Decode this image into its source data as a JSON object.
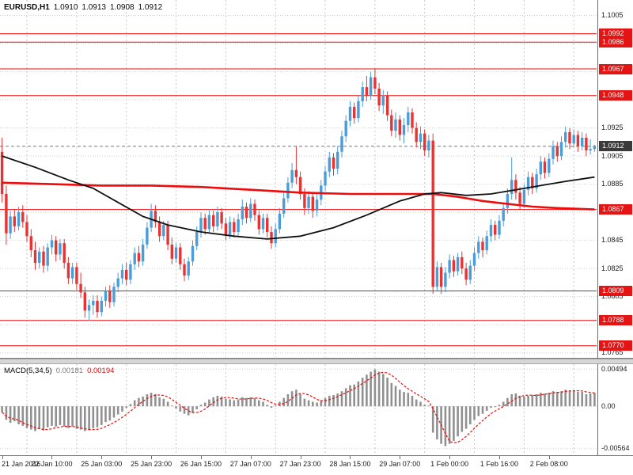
{
  "header": {
    "symbol_period": "EURUSD,H1",
    "open": "1.0910",
    "high": "1.0913",
    "low": "1.0908",
    "close": "1.0912"
  },
  "macd_header": {
    "name": "MACD(5,34,5)",
    "value_main": "0.00181",
    "value_signal": "0.00194"
  },
  "colors": {
    "up_candle": "#4b9cd8",
    "down_candle": "#e53434",
    "ma_fast_black": "#101010",
    "ma_slow_red": "#ee0b0b",
    "level_line": "#ee0b0b",
    "grid": "#cfcfcf",
    "separator": "#c8c8c8",
    "badge_red": "#e31414",
    "badge_dark": "#3a3a3a",
    "bid_line": "#777777",
    "macd_hist": "#909090",
    "macd_signal": "#ee0b0b"
  },
  "chart_data": {
    "type": "candlestick",
    "title": "EURUSD,H1",
    "timeframe": "H1",
    "price_axis": {
      "min": 1.0762,
      "max": 1.1016,
      "decimals": 4,
      "grid": [
        1.0765,
        1.0785,
        1.0805,
        1.0825,
        1.0845,
        1.0865,
        1.0885,
        1.0905,
        1.0925,
        1.0945,
        1.0965,
        1.0985,
        1.1005
      ],
      "visible_ticks": [
        1.1005,
        1.0925,
        1.0905,
        1.0885,
        1.0845,
        1.0825,
        1.0805,
        1.0765
      ]
    },
    "levels": [
      1.0992,
      1.0986,
      1.0967,
      1.0948,
      1.0867,
      1.0809,
      1.0788,
      1.077
    ],
    "bid_price": 1.0912,
    "day_separator_indices": [
      6,
      18,
      30,
      42,
      54,
      66,
      78,
      90,
      102,
      114,
      126,
      138
    ],
    "x_labels": [
      {
        "i": 0,
        "t": "21 Jan 2016"
      },
      {
        "i": 12,
        "t": "22 Jan 10:00"
      },
      {
        "i": 24,
        "t": "25 Jan 03:00"
      },
      {
        "i": 36,
        "t": "25 Jan 23:00"
      },
      {
        "i": 48,
        "t": "26 Jan 15:00"
      },
      {
        "i": 60,
        "t": "27 Jan 07:00"
      },
      {
        "i": 72,
        "t": "27 Jan 23:00"
      },
      {
        "i": 84,
        "t": "28 Jan 15:00"
      },
      {
        "i": 96,
        "t": "29 Jan 07:00"
      },
      {
        "i": 108,
        "t": "1 Feb 00:00"
      },
      {
        "i": 120,
        "t": "1 Feb 16:00"
      },
      {
        "i": 132,
        "t": "2 Feb 08:00"
      }
    ],
    "candles": [
      [
        1.0908,
        1.0918,
        1.0872,
        1.0878
      ],
      [
        1.0878,
        1.0884,
        1.0842,
        1.085
      ],
      [
        1.085,
        1.0866,
        1.0846,
        1.0862
      ],
      [
        1.0862,
        1.0867,
        1.0851,
        1.0855
      ],
      [
        1.0855,
        1.0869,
        1.0852,
        1.0865
      ],
      [
        1.0865,
        1.087,
        1.0854,
        1.0858
      ],
      [
        1.0858,
        1.0863,
        1.0844,
        1.0848
      ],
      [
        1.0848,
        1.0853,
        1.0833,
        1.0838
      ],
      [
        1.0838,
        1.0844,
        1.0824,
        1.0829
      ],
      [
        1.0829,
        1.084,
        1.0825,
        1.0837
      ],
      [
        1.0837,
        1.0841,
        1.0822,
        1.0827
      ],
      [
        1.0827,
        1.0843,
        1.0823,
        1.084
      ],
      [
        1.084,
        1.0849,
        1.0835,
        1.0845
      ],
      [
        1.0845,
        1.0848,
        1.083,
        1.0835
      ],
      [
        1.0835,
        1.0846,
        1.0831,
        1.0843
      ],
      [
        1.0843,
        1.0846,
        1.0825,
        1.0829
      ],
      [
        1.0829,
        1.0833,
        1.0814,
        1.0818
      ],
      [
        1.0818,
        1.0829,
        1.0814,
        1.0826
      ],
      [
        1.0826,
        1.0829,
        1.081,
        1.0814
      ],
      [
        1.0814,
        1.0822,
        1.0804,
        1.0808
      ],
      [
        1.0808,
        1.0812,
        1.079,
        1.0795
      ],
      [
        1.0795,
        1.0803,
        1.0788,
        1.0799
      ],
      [
        1.0799,
        1.0806,
        1.0792,
        1.0802
      ],
      [
        1.0802,
        1.0806,
        1.079,
        1.0794
      ],
      [
        1.0794,
        1.0805,
        1.0791,
        1.0802
      ],
      [
        1.0802,
        1.0812,
        1.0798,
        1.0809
      ],
      [
        1.0809,
        1.0813,
        1.0797,
        1.0801
      ],
      [
        1.0801,
        1.0815,
        1.0798,
        1.0812
      ],
      [
        1.0812,
        1.0822,
        1.0808,
        1.0818
      ],
      [
        1.0818,
        1.0828,
        1.0814,
        1.0824
      ],
      [
        1.0824,
        1.0829,
        1.0813,
        1.0817
      ],
      [
        1.0817,
        1.0831,
        1.0814,
        1.0828
      ],
      [
        1.0828,
        1.084,
        1.0824,
        1.0836
      ],
      [
        1.0836,
        1.0841,
        1.0826,
        1.083
      ],
      [
        1.083,
        1.0846,
        1.0827,
        1.0842
      ],
      [
        1.0842,
        1.0858,
        1.0839,
        1.0854
      ],
      [
        1.0854,
        1.0871,
        1.0851,
        1.0866
      ],
      [
        1.0866,
        1.087,
        1.0854,
        1.0858
      ],
      [
        1.0858,
        1.0862,
        1.0844,
        1.0848
      ],
      [
        1.0848,
        1.0859,
        1.0845,
        1.0856
      ],
      [
        1.0856,
        1.0859,
        1.0838,
        1.0842
      ],
      [
        1.0842,
        1.0847,
        1.0828,
        1.0832
      ],
      [
        1.0832,
        1.0843,
        1.0829,
        1.084
      ],
      [
        1.084,
        1.0843,
        1.0824,
        1.0828
      ],
      [
        1.0828,
        1.0832,
        1.0816,
        1.082
      ],
      [
        1.082,
        1.0833,
        1.0817,
        1.083
      ],
      [
        1.083,
        1.0845,
        1.0827,
        1.0841
      ],
      [
        1.0841,
        1.0855,
        1.0838,
        1.0851
      ],
      [
        1.0851,
        1.0865,
        1.0847,
        1.0861
      ],
      [
        1.0861,
        1.0864,
        1.0849,
        1.0853
      ],
      [
        1.0853,
        1.0867,
        1.085,
        1.0863
      ],
      [
        1.0863,
        1.0866,
        1.0851,
        1.0855
      ],
      [
        1.0855,
        1.0869,
        1.0852,
        1.0865
      ],
      [
        1.0865,
        1.0868,
        1.0853,
        1.0857
      ],
      [
        1.0857,
        1.0861,
        1.0845,
        1.0849
      ],
      [
        1.0849,
        1.0862,
        1.0846,
        1.0858
      ],
      [
        1.0858,
        1.0861,
        1.0847,
        1.0851
      ],
      [
        1.0851,
        1.0864,
        1.0848,
        1.086
      ],
      [
        1.086,
        1.0874,
        1.0856,
        1.0869
      ],
      [
        1.0869,
        1.0872,
        1.0857,
        1.0861
      ],
      [
        1.0861,
        1.0875,
        1.0858,
        1.0871
      ],
      [
        1.0871,
        1.0874,
        1.0859,
        1.0863
      ],
      [
        1.0863,
        1.0866,
        1.0849,
        1.0853
      ],
      [
        1.0853,
        1.0864,
        1.085,
        1.0861
      ],
      [
        1.0861,
        1.0864,
        1.0847,
        1.0851
      ],
      [
        1.0851,
        1.0855,
        1.0839,
        1.0843
      ],
      [
        1.0843,
        1.0857,
        1.084,
        1.0853
      ],
      [
        1.0853,
        1.0868,
        1.085,
        1.0864
      ],
      [
        1.0864,
        1.0879,
        1.0861,
        1.0875
      ],
      [
        1.0875,
        1.089,
        1.0872,
        1.0886
      ],
      [
        1.0886,
        1.09,
        1.0882,
        1.0895
      ],
      [
        1.0895,
        1.0912,
        1.0885,
        1.089
      ],
      [
        1.089,
        1.0894,
        1.0874,
        1.0878
      ],
      [
        1.0878,
        1.0882,
        1.0863,
        1.0868
      ],
      [
        1.0868,
        1.088,
        1.0864,
        1.0876
      ],
      [
        1.0876,
        1.0879,
        1.0861,
        1.0866
      ],
      [
        1.0866,
        1.0878,
        1.0862,
        1.0874
      ],
      [
        1.0874,
        1.0888,
        1.087,
        1.0884
      ],
      [
        1.0884,
        1.0898,
        1.088,
        1.0894
      ],
      [
        1.0894,
        1.0908,
        1.089,
        1.0904
      ],
      [
        1.0904,
        1.0907,
        1.0891,
        1.0896
      ],
      [
        1.0896,
        1.0912,
        1.0892,
        1.0908
      ],
      [
        1.0908,
        1.0923,
        1.0904,
        1.0919
      ],
      [
        1.0919,
        1.0934,
        1.0915,
        1.093
      ],
      [
        1.093,
        1.0944,
        1.0926,
        1.094
      ],
      [
        1.094,
        1.0943,
        1.0928,
        1.0932
      ],
      [
        1.0932,
        1.0948,
        1.0929,
        1.0944
      ],
      [
        1.0944,
        1.0958,
        1.094,
        1.0954
      ],
      [
        1.0954,
        1.0962,
        1.0944,
        1.0948
      ],
      [
        1.0948,
        1.0965,
        1.0945,
        1.0961
      ],
      [
        1.0961,
        1.0967,
        1.0949,
        1.0953
      ],
      [
        1.0953,
        1.0957,
        1.0937,
        1.0941
      ],
      [
        1.0941,
        1.0952,
        1.0935,
        1.0948
      ],
      [
        1.0948,
        1.0951,
        1.093,
        1.0934
      ],
      [
        1.0934,
        1.0938,
        1.0919,
        1.0923
      ],
      [
        1.0923,
        1.0936,
        1.0918,
        1.0931
      ],
      [
        1.0931,
        1.0934,
        1.0916,
        1.092
      ],
      [
        1.092,
        1.0932,
        1.0914,
        1.0927
      ],
      [
        1.0927,
        1.094,
        1.0922,
        1.0936
      ],
      [
        1.0936,
        1.0939,
        1.0921,
        1.0925
      ],
      [
        1.0925,
        1.0929,
        1.0911,
        1.0915
      ],
      [
        1.0915,
        1.0926,
        1.091,
        1.0921
      ],
      [
        1.0921,
        1.0924,
        1.0905,
        1.0909
      ],
      [
        1.0909,
        1.092,
        1.0904,
        1.0916
      ],
      [
        1.0916,
        1.0921,
        1.0807,
        1.0812
      ],
      [
        1.0812,
        1.083,
        1.0809,
        1.0826
      ],
      [
        1.0826,
        1.0829,
        1.0807,
        1.0812
      ],
      [
        1.0812,
        1.0826,
        1.0808,
        1.0822
      ],
      [
        1.0822,
        1.0835,
        1.0818,
        1.0831
      ],
      [
        1.0831,
        1.0834,
        1.0819,
        1.0823
      ],
      [
        1.0823,
        1.0836,
        1.082,
        1.0833
      ],
      [
        1.0833,
        1.0837,
        1.0821,
        1.0825
      ],
      [
        1.0825,
        1.0829,
        1.0813,
        1.0817
      ],
      [
        1.0817,
        1.0831,
        1.0814,
        1.0827
      ],
      [
        1.0827,
        1.084,
        1.0823,
        1.0836
      ],
      [
        1.0836,
        1.0848,
        1.0832,
        1.0844
      ],
      [
        1.0844,
        1.0847,
        1.0833,
        1.0838
      ],
      [
        1.0838,
        1.0852,
        1.0835,
        1.0848
      ],
      [
        1.0848,
        1.086,
        1.0844,
        1.0856
      ],
      [
        1.0856,
        1.0859,
        1.0845,
        1.0849
      ],
      [
        1.0849,
        1.0863,
        1.0846,
        1.0859
      ],
      [
        1.0859,
        1.0872,
        1.0855,
        1.0868
      ],
      [
        1.0868,
        1.0882,
        1.0864,
        1.0878
      ],
      [
        1.0878,
        1.0904,
        1.0874,
        1.0888
      ],
      [
        1.0888,
        1.0892,
        1.0874,
        1.0879
      ],
      [
        1.0879,
        1.0883,
        1.0867,
        1.0871
      ],
      [
        1.0871,
        1.0885,
        1.0868,
        1.0881
      ],
      [
        1.0881,
        1.0894,
        1.0877,
        1.089
      ],
      [
        1.089,
        1.0893,
        1.0878,
        1.0882
      ],
      [
        1.0882,
        1.0896,
        1.0879,
        1.0892
      ],
      [
        1.0892,
        1.0905,
        1.0888,
        1.0901
      ],
      [
        1.0901,
        1.0904,
        1.0889,
        1.0893
      ],
      [
        1.0893,
        1.0907,
        1.089,
        1.0903
      ],
      [
        1.0903,
        1.0916,
        1.0899,
        1.0912
      ],
      [
        1.0912,
        1.0915,
        1.0901,
        1.0905
      ],
      [
        1.0905,
        1.0919,
        1.0902,
        1.0915
      ],
      [
        1.0915,
        1.0926,
        1.0911,
        1.0922
      ],
      [
        1.0922,
        1.0925,
        1.091,
        1.0914
      ],
      [
        1.0914,
        1.0924,
        1.0911,
        1.092
      ],
      [
        1.092,
        1.0923,
        1.0908,
        1.0912
      ],
      [
        1.0912,
        1.0922,
        1.0909,
        1.0918
      ],
      [
        1.0918,
        1.0921,
        1.0905,
        1.0909
      ],
      [
        1.0909,
        1.0917,
        1.0906,
        1.091
      ],
      [
        1.091,
        1.0913,
        1.0908,
        1.0912
      ]
    ],
    "ma_fast_black": [
      [
        0,
        1.0905
      ],
      [
        8,
        1.0897
      ],
      [
        16,
        1.0888
      ],
      [
        22,
        1.0882
      ],
      [
        28,
        1.0872
      ],
      [
        34,
        1.0862
      ],
      [
        40,
        1.0856
      ],
      [
        48,
        1.0851
      ],
      [
        56,
        1.0848
      ],
      [
        64,
        1.0846
      ],
      [
        72,
        1.0848
      ],
      [
        80,
        1.0854
      ],
      [
        88,
        1.0863
      ],
      [
        96,
        1.0873
      ],
      [
        102,
        1.0878
      ],
      [
        106,
        1.0879
      ],
      [
        112,
        1.0877
      ],
      [
        118,
        1.0878
      ],
      [
        124,
        1.0881
      ],
      [
        130,
        1.0884
      ],
      [
        136,
        1.0887
      ],
      [
        143,
        1.089
      ]
    ],
    "ma_slow_red": [
      [
        0,
        1.0886
      ],
      [
        12,
        1.0885
      ],
      [
        24,
        1.0884
      ],
      [
        36,
        1.0884
      ],
      [
        48,
        1.0883
      ],
      [
        60,
        1.0881
      ],
      [
        72,
        1.0879
      ],
      [
        84,
        1.0878
      ],
      [
        96,
        1.0878
      ],
      [
        104,
        1.0878
      ],
      [
        110,
        1.0876
      ],
      [
        116,
        1.0873
      ],
      [
        122,
        1.0871
      ],
      [
        128,
        1.0869
      ],
      [
        134,
        1.0868
      ],
      [
        143,
        1.0867
      ]
    ],
    "macd": {
      "name": "MACD(5,34,5)",
      "current_macd": 0.00181,
      "current_signal": 0.00194,
      "axis": {
        "min": -0.0064,
        "max": 0.0056,
        "ticks": [
          {
            "v": 0.00494,
            "label": "0.00494"
          },
          {
            "v": 0,
            "label": "0.00"
          },
          {
            "v": -0.00564,
            "label": "-0.00564"
          }
        ]
      },
      "values": [
        -0.0008,
        -0.0018,
        -0.0022,
        -0.002,
        -0.0024,
        -0.0026,
        -0.0029,
        -0.0031,
        -0.0033,
        -0.003,
        -0.0032,
        -0.0028,
        -0.0026,
        -0.0027,
        -0.0025,
        -0.0027,
        -0.0029,
        -0.0027,
        -0.003,
        -0.0031,
        -0.0033,
        -0.0032,
        -0.0029,
        -0.0028,
        -0.0025,
        -0.0021,
        -0.0019,
        -0.0015,
        -0.0011,
        -0.0007,
        -0.0002,
        0.0003,
        0.0008,
        0.0011,
        0.0013,
        0.0016,
        0.0018,
        0.0016,
        0.0012,
        0.001,
        0.0006,
        0.0001,
        -0.0003,
        -0.0007,
        -0.001,
        -0.0012,
        -0.0009,
        -0.0004,
        0.0002,
        0.0005,
        0.0009,
        0.0012,
        0.0014,
        0.0013,
        0.001,
        0.0009,
        0.0008,
        0.0009,
        0.0012,
        0.0011,
        0.0012,
        0.0011,
        0.0008,
        0.0006,
        0.0002,
        -0.0002,
        0.0001,
        0.0006,
        0.0011,
        0.0016,
        0.002,
        0.0022,
        0.0016,
        0.001,
        0.0008,
        0.0006,
        0.0005,
        0.0008,
        0.0011,
        0.0014,
        0.0015,
        0.0017,
        0.002,
        0.0024,
        0.0028,
        0.0029,
        0.0033,
        0.0038,
        0.0042,
        0.0046,
        0.0049,
        0.0046,
        0.0043,
        0.0038,
        0.0031,
        0.0027,
        0.0022,
        0.0019,
        0.0018,
        0.0014,
        0.0009,
        0.0006,
        0.0002,
        0.0001,
        -0.0035,
        -0.0044,
        -0.005,
        -0.0053,
        -0.005,
        -0.0046,
        -0.004,
        -0.0034,
        -0.003,
        -0.0024,
        -0.0018,
        -0.0013,
        -0.001,
        -0.0006,
        -0.0002,
        -0.0001,
        0.0002,
        0.0006,
        0.0011,
        0.0016,
        0.0017,
        0.0014,
        0.0013,
        0.0014,
        0.0015,
        0.0016,
        0.0018,
        0.0017,
        0.0018,
        0.002,
        0.0019,
        0.002,
        0.0022,
        0.0021,
        0.0021,
        0.0019,
        0.0019,
        0.0016,
        0.0017,
        0.0018
      ]
    }
  }
}
